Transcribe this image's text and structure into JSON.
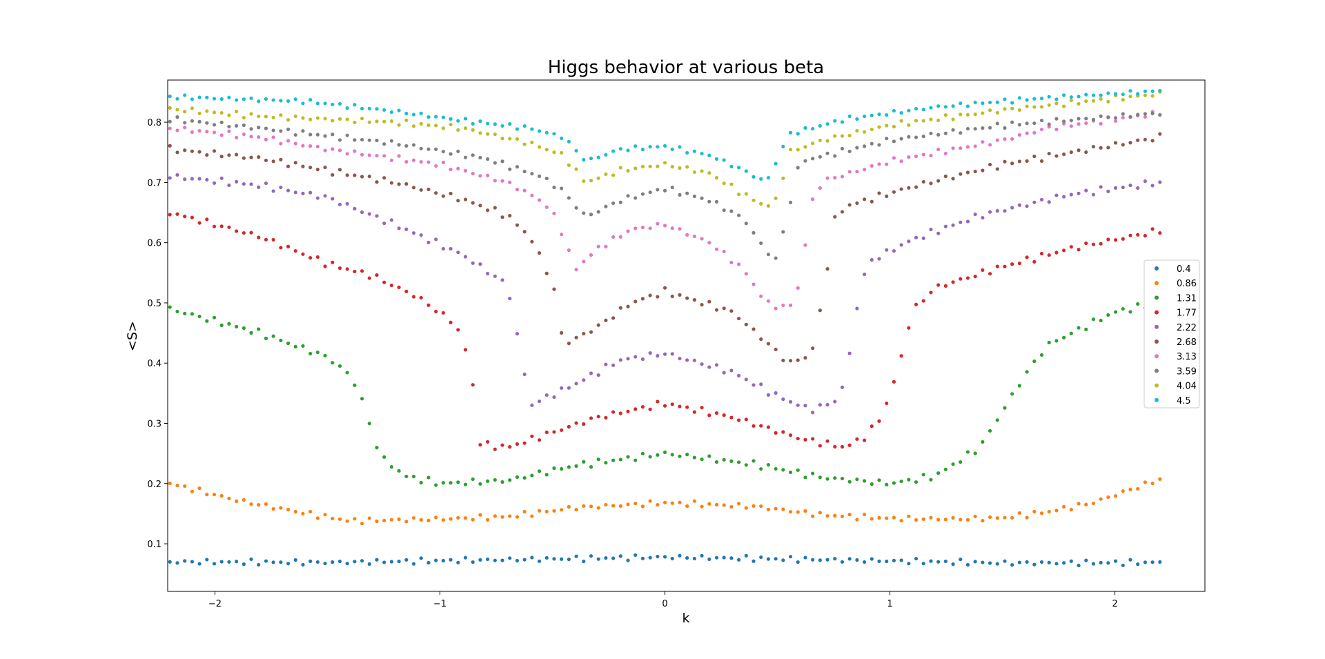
{
  "chart_data": {
    "type": "scatter",
    "title": "Higgs behavior at various beta",
    "xlabel": "k",
    "ylabel": "<S>",
    "xlim": [
      -2.21,
      2.4
    ],
    "ylim": [
      0.021,
      0.87
    ],
    "xticks": [
      -2,
      -1,
      0,
      1,
      2
    ],
    "xtick_labels": [
      "−2",
      "−1",
      "0",
      "1",
      "2"
    ],
    "yticks": [
      0.1,
      0.2,
      0.3,
      0.4,
      0.5,
      0.6,
      0.7,
      0.8
    ],
    "ytick_labels": [
      "0.1",
      "0.2",
      "0.3",
      "0.4",
      "0.5",
      "0.6",
      "0.7",
      "0.8"
    ],
    "grid": false,
    "legend_position": "center-right",
    "x_range": [
      -2.2,
      2.2
    ],
    "num_points": 135,
    "series": [
      {
        "name": "0.4",
        "color": "#1f77b4",
        "knots": [
          [
            -2.2,
            0.07
          ],
          [
            -1.5,
            0.069
          ],
          [
            -0.8,
            0.073
          ],
          [
            0,
            0.078
          ],
          [
            0.8,
            0.073
          ],
          [
            1.5,
            0.068
          ],
          [
            2.2,
            0.069
          ]
        ],
        "noise": 0.005
      },
      {
        "name": "0.86",
        "color": "#ff7f0e",
        "knots": [
          [
            -2.2,
            0.2
          ],
          [
            -1.9,
            0.172
          ],
          [
            -1.6,
            0.151
          ],
          [
            -1.4,
            0.138
          ],
          [
            -1.0,
            0.141
          ],
          [
            -0.7,
            0.145
          ],
          [
            -0.4,
            0.16
          ],
          [
            0,
            0.168
          ],
          [
            0.4,
            0.162
          ],
          [
            0.7,
            0.148
          ],
          [
            1.0,
            0.142
          ],
          [
            1.3,
            0.141
          ],
          [
            1.5,
            0.143
          ],
          [
            1.7,
            0.153
          ],
          [
            1.9,
            0.168
          ],
          [
            2.2,
            0.207
          ]
        ],
        "noise": 0.005
      },
      {
        "name": "1.31",
        "color": "#2ca02c",
        "knots": [
          [
            -2.2,
            0.49
          ],
          [
            -1.8,
            0.45
          ],
          [
            -1.5,
            0.41
          ],
          [
            -1.4,
            0.38
          ],
          [
            -1.35,
            0.345
          ],
          [
            -1.3,
            0.28
          ],
          [
            -1.25,
            0.24
          ],
          [
            -1.15,
            0.212
          ],
          [
            -1.0,
            0.2
          ],
          [
            -0.7,
            0.205
          ],
          [
            -0.4,
            0.23
          ],
          [
            0,
            0.25
          ],
          [
            0.4,
            0.232
          ],
          [
            0.7,
            0.21
          ],
          [
            1.0,
            0.2
          ],
          [
            1.2,
            0.212
          ],
          [
            1.4,
            0.26
          ],
          [
            1.5,
            0.32
          ],
          [
            1.6,
            0.38
          ],
          [
            1.7,
            0.43
          ],
          [
            2.0,
            0.485
          ],
          [
            2.2,
            0.5
          ]
        ],
        "noise": 0.006
      },
      {
        "name": "1.77",
        "color": "#d62728",
        "knots": [
          [
            -2.2,
            0.65
          ],
          [
            -1.8,
            0.61
          ],
          [
            -1.5,
            0.565
          ],
          [
            -1.3,
            0.545
          ],
          [
            -1.1,
            0.51
          ],
          [
            -0.95,
            0.47
          ],
          [
            -0.9,
            0.445
          ],
          [
            -0.85,
            0.357
          ],
          [
            -0.82,
            0.265
          ],
          [
            -0.7,
            0.26
          ],
          [
            -0.5,
            0.285
          ],
          [
            -0.3,
            0.31
          ],
          [
            0,
            0.333
          ],
          [
            0.3,
            0.31
          ],
          [
            0.6,
            0.275
          ],
          [
            0.8,
            0.26
          ],
          [
            0.9,
            0.28
          ],
          [
            0.95,
            0.305
          ],
          [
            1.0,
            0.345
          ],
          [
            1.05,
            0.41
          ],
          [
            1.1,
            0.487
          ],
          [
            1.2,
            0.525
          ],
          [
            1.5,
            0.56
          ],
          [
            1.8,
            0.59
          ],
          [
            2.2,
            0.62
          ]
        ],
        "noise": 0.006
      },
      {
        "name": "2.22",
        "color": "#9467bd",
        "knots": [
          [
            -2.2,
            0.71
          ],
          [
            -1.8,
            0.695
          ],
          [
            -1.5,
            0.675
          ],
          [
            -1.2,
            0.63
          ],
          [
            -0.9,
            0.58
          ],
          [
            -0.7,
            0.53
          ],
          [
            -0.65,
            0.435
          ],
          [
            -0.6,
            0.33
          ],
          [
            -0.4,
            0.365
          ],
          [
            -0.2,
            0.405
          ],
          [
            0,
            0.416
          ],
          [
            0.3,
            0.385
          ],
          [
            0.5,
            0.345
          ],
          [
            0.65,
            0.322
          ],
          [
            0.75,
            0.335
          ],
          [
            0.8,
            0.365
          ],
          [
            0.85,
            0.487
          ],
          [
            0.9,
            0.567
          ],
          [
            1.1,
            0.605
          ],
          [
            1.4,
            0.645
          ],
          [
            1.8,
            0.68
          ],
          [
            2.2,
            0.7
          ]
        ],
        "noise": 0.006
      },
      {
        "name": "2.68",
        "color": "#8c564b",
        "knots": [
          [
            -2.2,
            0.755
          ],
          [
            -1.8,
            0.74
          ],
          [
            -1.5,
            0.72
          ],
          [
            -1.2,
            0.7
          ],
          [
            -0.9,
            0.672
          ],
          [
            -0.7,
            0.645
          ],
          [
            -0.6,
            0.61
          ],
          [
            -0.5,
            0.535
          ],
          [
            -0.45,
            0.43
          ],
          [
            -0.3,
            0.46
          ],
          [
            -0.15,
            0.5
          ],
          [
            0,
            0.519
          ],
          [
            0.3,
            0.485
          ],
          [
            0.45,
            0.435
          ],
          [
            0.55,
            0.4
          ],
          [
            0.65,
            0.413
          ],
          [
            0.7,
            0.503
          ],
          [
            0.75,
            0.635
          ],
          [
            0.8,
            0.66
          ],
          [
            1.1,
            0.693
          ],
          [
            1.5,
            0.73
          ],
          [
            2.2,
            0.775
          ]
        ],
        "noise": 0.006
      },
      {
        "name": "3.13",
        "color": "#e377c2",
        "knots": [
          [
            -2.2,
            0.79
          ],
          [
            -1.8,
            0.775
          ],
          [
            -1.5,
            0.755
          ],
          [
            -1.0,
            0.73
          ],
          [
            -0.7,
            0.7
          ],
          [
            -0.55,
            0.67
          ],
          [
            -0.48,
            0.64
          ],
          [
            -0.4,
            0.555
          ],
          [
            -0.3,
            0.59
          ],
          [
            -0.15,
            0.622
          ],
          [
            0,
            0.63
          ],
          [
            0.2,
            0.6
          ],
          [
            0.35,
            0.555
          ],
          [
            0.45,
            0.5
          ],
          [
            0.55,
            0.49
          ],
          [
            0.6,
            0.533
          ],
          [
            0.65,
            0.665
          ],
          [
            0.7,
            0.702
          ],
          [
            1.0,
            0.735
          ],
          [
            1.5,
            0.77
          ],
          [
            1.7,
            0.79
          ],
          [
            2.2,
            0.815
          ]
        ],
        "noise": 0.005
      },
      {
        "name": "3.59",
        "color": "#7f7f7f",
        "knots": [
          [
            -2.2,
            0.805
          ],
          [
            -1.8,
            0.79
          ],
          [
            -1.2,
            0.765
          ],
          [
            -0.8,
            0.74
          ],
          [
            -0.55,
            0.71
          ],
          [
            -0.45,
            0.685
          ],
          [
            -0.4,
            0.662
          ],
          [
            -0.35,
            0.643
          ],
          [
            -0.2,
            0.67
          ],
          [
            0,
            0.69
          ],
          [
            0.2,
            0.67
          ],
          [
            0.35,
            0.64
          ],
          [
            0.45,
            0.585
          ],
          [
            0.5,
            0.572
          ],
          [
            0.55,
            0.658
          ],
          [
            0.6,
            0.735
          ],
          [
            1.0,
            0.77
          ],
          [
            1.5,
            0.795
          ],
          [
            2.2,
            0.815
          ]
        ],
        "noise": 0.005
      },
      {
        "name": "4.04",
        "color": "#bcbd22",
        "knots": [
          [
            -2.2,
            0.822
          ],
          [
            -1.8,
            0.81
          ],
          [
            -1.2,
            0.8
          ],
          [
            -0.9,
            0.79
          ],
          [
            -0.6,
            0.765
          ],
          [
            -0.45,
            0.745
          ],
          [
            -0.4,
            0.72
          ],
          [
            -0.35,
            0.7
          ],
          [
            -0.2,
            0.72
          ],
          [
            0,
            0.73
          ],
          [
            0.2,
            0.715
          ],
          [
            0.35,
            0.68
          ],
          [
            0.45,
            0.66
          ],
          [
            0.5,
            0.672
          ],
          [
            0.55,
            0.75
          ],
          [
            0.7,
            0.77
          ],
          [
            1.0,
            0.795
          ],
          [
            1.5,
            0.82
          ],
          [
            2.2,
            0.847
          ]
        ],
        "noise": 0.005
      },
      {
        "name": "4.5",
        "color": "#17becf",
        "knots": [
          [
            -2.2,
            0.842
          ],
          [
            -1.6,
            0.835
          ],
          [
            -1.2,
            0.818
          ],
          [
            -0.9,
            0.803
          ],
          [
            -0.6,
            0.79
          ],
          [
            -0.45,
            0.775
          ],
          [
            -0.35,
            0.735
          ],
          [
            -0.2,
            0.755
          ],
          [
            0,
            0.76
          ],
          [
            0.2,
            0.745
          ],
          [
            0.35,
            0.72
          ],
          [
            0.45,
            0.7
          ],
          [
            0.5,
            0.738
          ],
          [
            0.55,
            0.78
          ],
          [
            0.8,
            0.805
          ],
          [
            1.2,
            0.825
          ],
          [
            1.6,
            0.838
          ],
          [
            2.2,
            0.852
          ]
        ],
        "noise": 0.004
      }
    ]
  }
}
